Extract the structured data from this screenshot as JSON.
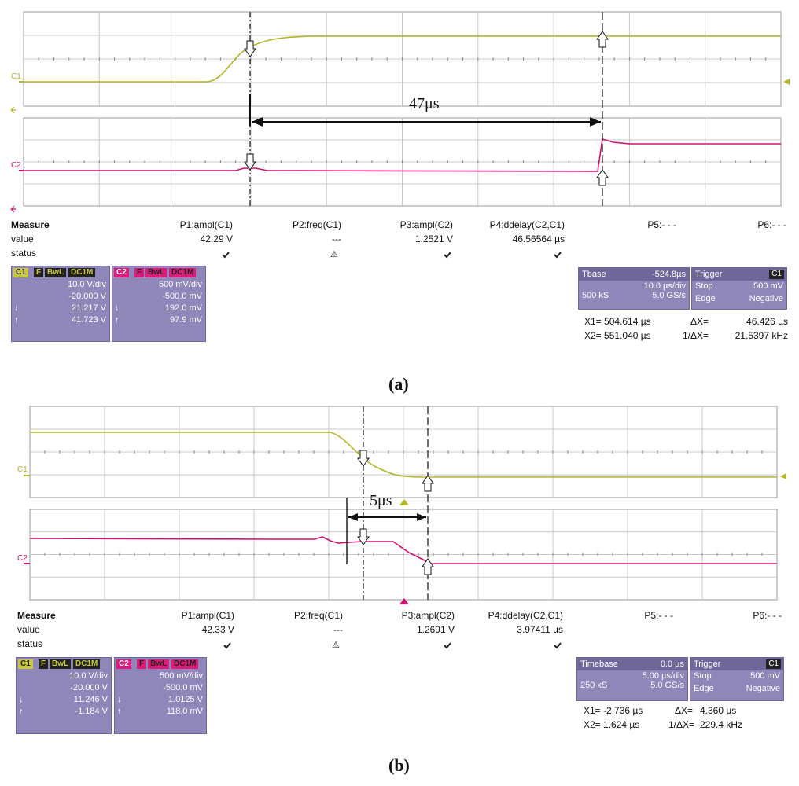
{
  "chart_data": [
    {
      "type": "line",
      "panel": "a",
      "caption": "(a)",
      "channels": [
        {
          "name": "C1",
          "color": "#b5b52a",
          "description": "rising edge",
          "low_level": "low",
          "high_level": "high"
        },
        {
          "name": "C2",
          "color": "#d01070",
          "description": "step up at second cursor"
        }
      ],
      "annotation": {
        "label": "47μs"
      },
      "measure": {
        "title": "Measure",
        "row_labels": [
          "value",
          "status"
        ],
        "columns": [
          {
            "name": "P1:ampl(C1)",
            "value": "42.29 V",
            "status": "check"
          },
          {
            "name": "P2:freq(C1)",
            "value": "---",
            "status": "warn"
          },
          {
            "name": "P3:ampl(C2)",
            "value": "1.2521 V",
            "status": "check"
          },
          {
            "name": "P4:ddelay(C2,C1)",
            "value": "46.56564 µs",
            "status": "check"
          },
          {
            "name": "P5:- - -",
            "value": "",
            "status": ""
          },
          {
            "name": "P6:- - -",
            "value": "",
            "status": ""
          }
        ]
      },
      "c1_box": {
        "label": "C1",
        "tags": [
          "F",
          "BwL",
          "DC1M"
        ],
        "vdiv": "10.0 V/div",
        "offset": "-20.000 V",
        "low": "21.217 V",
        "high": "41.723 V"
      },
      "c2_box": {
        "label": "C2",
        "tags": [
          "F",
          "BwL",
          "DC1M"
        ],
        "vdiv": "500 mV/div",
        "offset": "-500.0 mV",
        "low": "192.0 mV",
        "high": "97.9 mV"
      },
      "tbase": {
        "label": "Tbase",
        "value": "-524.8µs",
        "tdiv": "10.0 µs/div",
        "samples": "500 kS",
        "rate": "5.0 GS/s"
      },
      "trigger": {
        "label": "Trigger",
        "src": "C1",
        "mode": "Stop",
        "level": "500 mV",
        "type": "Edge",
        "slope": "Negative"
      },
      "cursors": {
        "x1": "X1=  504.614 µs",
        "dx": "ΔX=",
        "dx_val": "46.426 µs",
        "x2": "X2=  551.040 µs",
        "idx": "1/ΔX=",
        "idx_val": "21.5397 kHz"
      }
    },
    {
      "type": "line",
      "panel": "b",
      "caption": "(b)",
      "channels": [
        {
          "name": "C1",
          "color": "#b5b52a",
          "description": "falling edge"
        },
        {
          "name": "C2",
          "color": "#d01070",
          "description": "step down"
        }
      ],
      "annotation": {
        "label": "5μs"
      },
      "measure": {
        "title": "Measure",
        "row_labels": [
          "value",
          "status"
        ],
        "columns": [
          {
            "name": "P1:ampl(C1)",
            "value": "42.33 V",
            "status": "check"
          },
          {
            "name": "P2:freq(C1)",
            "value": "---",
            "status": "warn"
          },
          {
            "name": "P3:ampl(C2)",
            "value": "1.2691 V",
            "status": "check"
          },
          {
            "name": "P4:ddelay(C2,C1)",
            "value": "3.97411 µs",
            "status": "check"
          },
          {
            "name": "P5:- - -",
            "value": "",
            "status": ""
          },
          {
            "name": "P6:- - -",
            "value": "",
            "status": ""
          }
        ]
      },
      "c1_box": {
        "label": "C1",
        "tags": [
          "F",
          "BwL",
          "DC1M"
        ],
        "vdiv": "10.0 V/div",
        "offset": "-20.000 V",
        "low": "11.246 V",
        "high": "-1.184 V"
      },
      "c2_box": {
        "label": "C2",
        "tags": [
          "F",
          "BwL",
          "DC1M"
        ],
        "vdiv": "500 mV/div",
        "offset": "-500.0 mV",
        "low": "1.0125 V",
        "high": "118.0 mV"
      },
      "tbase": {
        "label": "Timebase",
        "value": "0.0 µs",
        "tdiv": "5.00 µs/div",
        "samples": "250 kS",
        "rate": "5.0 GS/s"
      },
      "trigger": {
        "label": "Trigger",
        "src": "C1",
        "mode": "Stop",
        "level": "500 mV",
        "type": "Edge",
        "slope": "Negative"
      },
      "cursors": {
        "x1": "X1=  -2.736 µs",
        "dx": "ΔX=",
        "dx_val": "4.360 µs",
        "x2": "X2=  1.624 µs",
        "idx": "1/ΔX=",
        "idx_val": "229.4 kHz"
      }
    }
  ]
}
